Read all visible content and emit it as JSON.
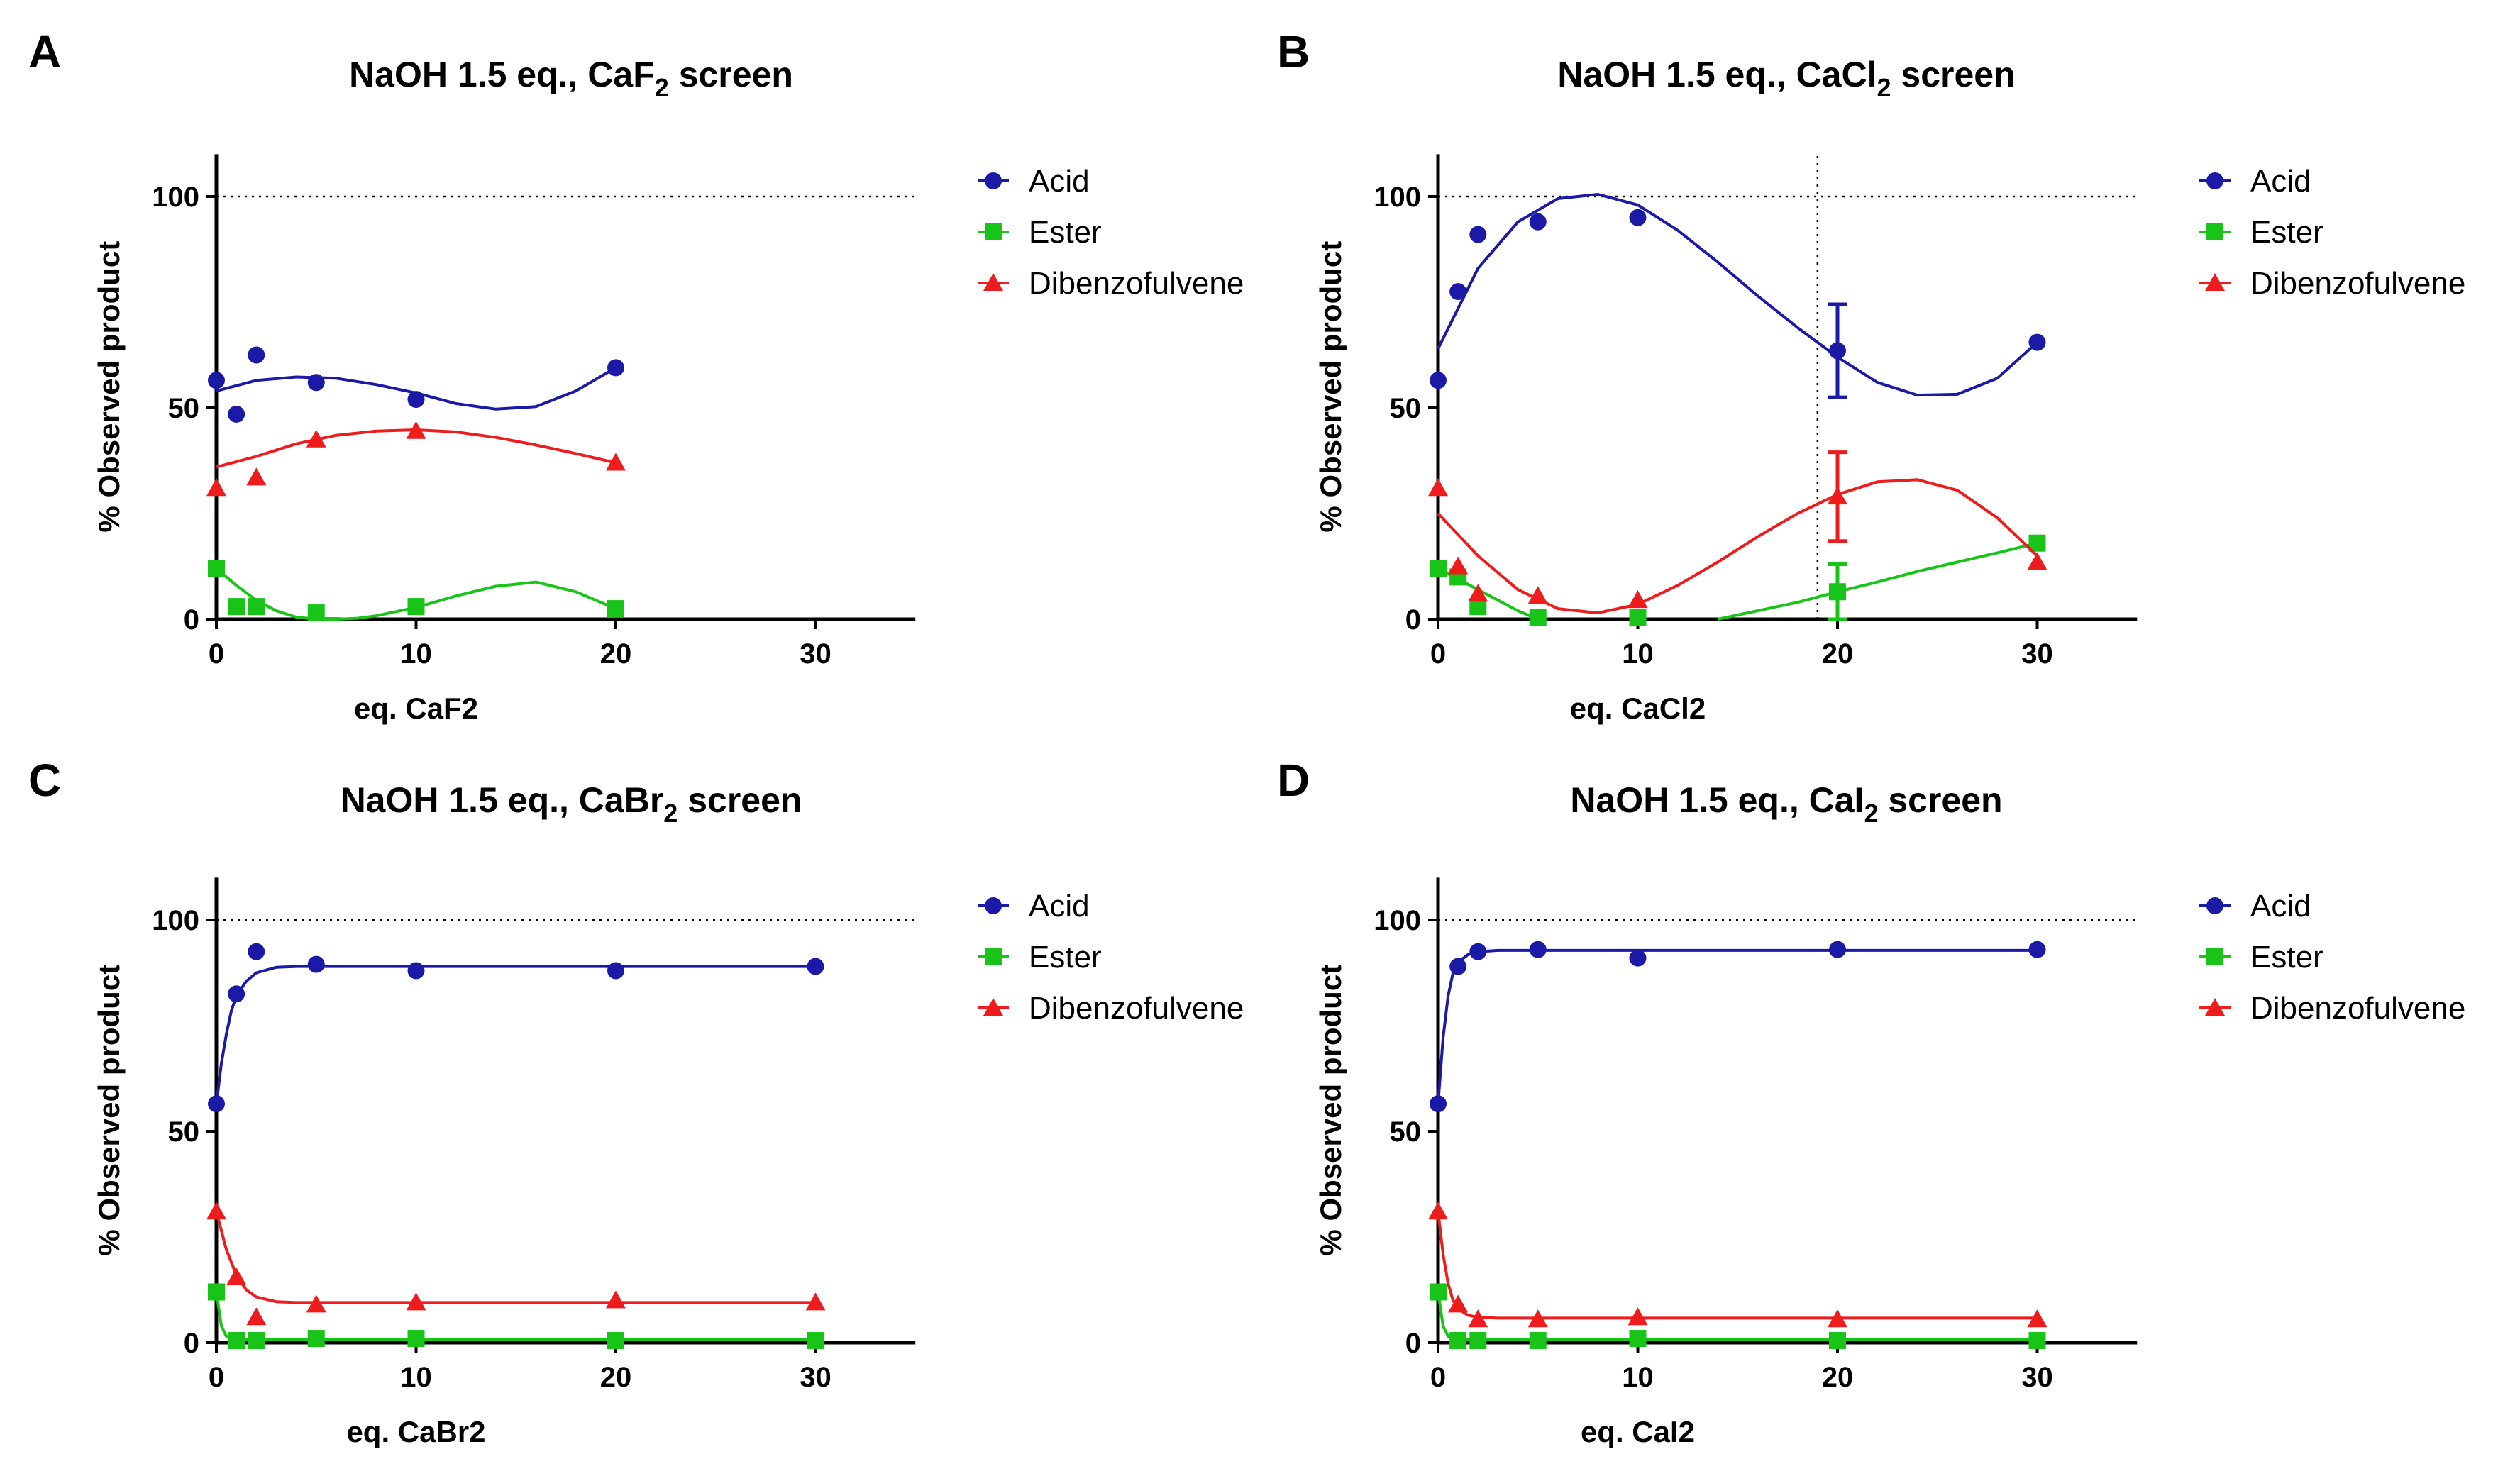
{
  "figure": {
    "panels": [
      {
        "letter": "A",
        "title": "NaOH 1.5 eq., CaF",
        "title_sub": "2",
        "title_tail": " screen"
      },
      {
        "letter": "B",
        "title": "NaOH 1.5 eq., CaCl",
        "title_sub": "2",
        "title_tail": " screen"
      },
      {
        "letter": "C",
        "title": "NaOH 1.5 eq., CaBr",
        "title_sub": "2",
        "title_tail": " screen"
      },
      {
        "letter": "D",
        "title": "NaOH 1.5 eq., CaI",
        "title_sub": "2",
        "title_tail": " screen"
      }
    ]
  },
  "legend": [
    "Acid",
    "Ester",
    "Dibenzofulvene"
  ],
  "colors": {
    "acid": "#1a1aa6",
    "ester": "#18c418",
    "dbf": "#ee1c1c"
  },
  "chart_data": [
    {
      "type": "scatter",
      "title": "NaOH 1.5 eq., CaF2 screen",
      "xlabel": "eq. CaF2",
      "ylabel": "% Observed product",
      "xlim": [
        0,
        35
      ],
      "ylim": [
        0,
        110
      ],
      "xticks": [
        "0",
        "10",
        "20",
        "30"
      ],
      "yticks": [
        "0",
        "50",
        "100"
      ],
      "reference_y": 100,
      "reference_x": null,
      "series": [
        {
          "name": "Acid",
          "x": [
            0,
            1,
            2,
            5,
            10,
            20
          ],
          "y": [
            56.5,
            48.5,
            62.5,
            56,
            52,
            59.5
          ],
          "fit": [
            [
              0,
              54
            ],
            [
              2,
              56.5
            ],
            [
              4,
              57.3
            ],
            [
              6,
              57
            ],
            [
              8,
              55.5
            ],
            [
              10,
              53.5
            ],
            [
              12,
              51
            ],
            [
              14,
              49.7
            ],
            [
              16,
              50.3
            ],
            [
              18,
              54
            ],
            [
              20,
              59.5
            ]
          ]
        },
        {
          "name": "Ester",
          "x": [
            0,
            1,
            2,
            5,
            10,
            20
          ],
          "y": [
            12,
            3,
            3,
            1.5,
            3,
            2.5
          ],
          "fit": [
            [
              0,
              12
            ],
            [
              1,
              8
            ],
            [
              2,
              4.5
            ],
            [
              3,
              2
            ],
            [
              4,
              0.5
            ],
            [
              5,
              0
            ],
            [
              6,
              0
            ],
            [
              7,
              0.2
            ],
            [
              8,
              0.8
            ],
            [
              10,
              2.8
            ],
            [
              12,
              5.5
            ],
            [
              14,
              7.8
            ],
            [
              16,
              8.8
            ],
            [
              18,
              6.5
            ],
            [
              20,
              2.5
            ]
          ]
        },
        {
          "name": "Dibenzofulvene",
          "x": [
            0,
            2,
            5,
            10,
            20
          ],
          "y": [
            31,
            33.5,
            42.5,
            44.5,
            37
          ],
          "fit": [
            [
              0,
              36
            ],
            [
              2,
              38.5
            ],
            [
              4,
              41.5
            ],
            [
              6,
              43.5
            ],
            [
              8,
              44.5
            ],
            [
              10,
              44.8
            ],
            [
              12,
              44.3
            ],
            [
              14,
              43
            ],
            [
              16,
              41.2
            ],
            [
              18,
              39.2
            ],
            [
              20,
              37
            ]
          ]
        }
      ]
    },
    {
      "type": "scatter",
      "title": "NaOH 1.5 eq., CaCl2 screen",
      "xlabel": "eq. CaCl2",
      "ylabel": "% Observed product",
      "xlim": [
        0,
        35
      ],
      "ylim": [
        0,
        110
      ],
      "xticks": [
        "0",
        "10",
        "20",
        "30"
      ],
      "yticks": [
        "0",
        "50",
        "100"
      ],
      "reference_y": 100,
      "reference_x": 19,
      "series": [
        {
          "name": "Acid",
          "x": [
            0,
            1,
            2,
            5,
            10,
            20,
            30
          ],
          "y": [
            56.5,
            77.5,
            91,
            94,
            95,
            63.5,
            65.5
          ],
          "err": [
            null,
            null,
            null,
            null,
            null,
            11,
            null
          ],
          "fit": [
            [
              0,
              64
            ],
            [
              2,
              83
            ],
            [
              4,
              94
            ],
            [
              6,
              99.5
            ],
            [
              8,
              100.5
            ],
            [
              10,
              98
            ],
            [
              12,
              92
            ],
            [
              14,
              84.5
            ],
            [
              16,
              76.5
            ],
            [
              18,
              69
            ],
            [
              20,
              62
            ],
            [
              22,
              56
            ],
            [
              24,
              53
            ],
            [
              26,
              53.2
            ],
            [
              28,
              57
            ],
            [
              30,
              65.5
            ]
          ]
        },
        {
          "name": "Ester",
          "x": [
            0,
            1,
            2,
            5,
            10,
            20,
            30
          ],
          "y": [
            12,
            10,
            3,
            0.5,
            0.5,
            6.5,
            18
          ],
          "err": [
            null,
            null,
            null,
            null,
            null,
            6.5,
            null
          ],
          "fit_segments": [
            [
              [
                0,
                12
              ],
              [
                1,
                9.5
              ],
              [
                2,
                7
              ],
              [
                3,
                4.5
              ],
              [
                4,
                2
              ],
              [
                5,
                0
              ]
            ],
            [
              [
                14,
                0
              ],
              [
                16,
                2
              ],
              [
                18,
                4
              ],
              [
                20,
                6.5
              ],
              [
                22,
                8.8
              ],
              [
                24,
                11.3
              ],
              [
                26,
                13.5
              ],
              [
                28,
                15.7
              ],
              [
                30,
                18
              ]
            ]
          ]
        },
        {
          "name": "Dibenzofulvene",
          "x": [
            0,
            1,
            2,
            5,
            10,
            20,
            30
          ],
          "y": [
            31,
            12.5,
            6,
            5.5,
            4.5,
            29,
            13.5
          ],
          "err": [
            null,
            null,
            null,
            null,
            null,
            10.5,
            null
          ],
          "fit": [
            [
              0,
              25
            ],
            [
              2,
              15
            ],
            [
              4,
              7
            ],
            [
              6,
              2.5
            ],
            [
              8,
              1.5
            ],
            [
              10,
              3.5
            ],
            [
              12,
              8
            ],
            [
              14,
              13.5
            ],
            [
              16,
              19.5
            ],
            [
              18,
              25
            ],
            [
              20,
              29.5
            ],
            [
              22,
              32.5
            ],
            [
              24,
              33
            ],
            [
              26,
              30.5
            ],
            [
              28,
              24
            ],
            [
              30,
              15
            ]
          ]
        }
      ]
    },
    {
      "type": "scatter",
      "title": "NaOH 1.5 eq., CaBr2 screen",
      "xlabel": "eq. CaBr2",
      "ylabel": "% Observed product",
      "xlim": [
        0,
        35
      ],
      "ylim": [
        0,
        110
      ],
      "xticks": [
        "0",
        "10",
        "20",
        "30"
      ],
      "yticks": [
        "0",
        "50",
        "100"
      ],
      "reference_y": 100,
      "reference_x": null,
      "series": [
        {
          "name": "Acid",
          "x": [
            0,
            1,
            2,
            5,
            10,
            20,
            30
          ],
          "y": [
            56.5,
            82.5,
            92.5,
            89.5,
            88,
            88,
            89
          ],
          "fit": [
            [
              0,
              56.5
            ],
            [
              0.25,
              66
            ],
            [
              0.5,
              73
            ],
            [
              0.75,
              78.5
            ],
            [
              1,
              82
            ],
            [
              1.5,
              85.5
            ],
            [
              2,
              87.5
            ],
            [
              3,
              88.8
            ],
            [
              4,
              89
            ],
            [
              30,
              89
            ]
          ]
        },
        {
          "name": "Ester",
          "x": [
            0,
            1,
            2,
            5,
            10,
            20,
            30
          ],
          "y": [
            12,
            0.5,
            0.5,
            1,
            1,
            0.5,
            0.5
          ],
          "fit": [
            [
              0,
              12
            ],
            [
              0.25,
              4
            ],
            [
              0.5,
              1.5
            ],
            [
              1,
              0.8
            ],
            [
              30,
              0.8
            ]
          ]
        },
        {
          "name": "Dibenzofulvene",
          "x": [
            0,
            1,
            2,
            5,
            10,
            20,
            30
          ],
          "y": [
            31,
            15.5,
            6,
            9,
            9.5,
            10,
            9.5
          ],
          "fit": [
            [
              0,
              31
            ],
            [
              0.5,
              22
            ],
            [
              1,
              16
            ],
            [
              1.5,
              12.5
            ],
            [
              2,
              10.8
            ],
            [
              3,
              9.7
            ],
            [
              4,
              9.5
            ],
            [
              30,
              9.5
            ]
          ]
        }
      ]
    },
    {
      "type": "scatter",
      "title": "NaOH 1.5 eq., CaI2 screen",
      "xlabel": "eq. CaI2",
      "ylabel": "% Observed product",
      "xlim": [
        0,
        35
      ],
      "ylim": [
        0,
        110
      ],
      "xticks": [
        "0",
        "10",
        "20",
        "30"
      ],
      "yticks": [
        "0",
        "50",
        "100"
      ],
      "reference_y": 100,
      "reference_x": null,
      "series": [
        {
          "name": "Acid",
          "x": [
            0,
            1,
            2,
            5,
            10,
            20,
            30
          ],
          "y": [
            56.5,
            89,
            92.5,
            93,
            91,
            93,
            93
          ],
          "fit": [
            [
              0,
              56.5
            ],
            [
              0.25,
              72
            ],
            [
              0.5,
              82
            ],
            [
              0.75,
              87.5
            ],
            [
              1,
              90
            ],
            [
              1.5,
              91.8
            ],
            [
              2,
              92.5
            ],
            [
              3,
              92.8
            ],
            [
              30,
              92.8
            ]
          ]
        },
        {
          "name": "Ester",
          "x": [
            0,
            1,
            2,
            5,
            10,
            20,
            30
          ],
          "y": [
            12,
            0.5,
            0.5,
            0.5,
            1,
            0.5,
            0.5
          ],
          "fit": [
            [
              0,
              12
            ],
            [
              0.25,
              4
            ],
            [
              0.5,
              1.5
            ],
            [
              1,
              0.8
            ],
            [
              30,
              0.8
            ]
          ]
        },
        {
          "name": "Dibenzofulvene",
          "x": [
            0,
            1,
            2,
            5,
            10,
            20,
            30
          ],
          "y": [
            31,
            9,
            5.5,
            5.5,
            6,
            5.5,
            5.5
          ],
          "fit": [
            [
              0,
              31
            ],
            [
              0.25,
              21
            ],
            [
              0.5,
              14
            ],
            [
              0.75,
              10
            ],
            [
              1,
              8
            ],
            [
              1.5,
              6.5
            ],
            [
              2,
              6
            ],
            [
              3,
              5.8
            ],
            [
              30,
              5.8
            ]
          ]
        }
      ]
    }
  ]
}
